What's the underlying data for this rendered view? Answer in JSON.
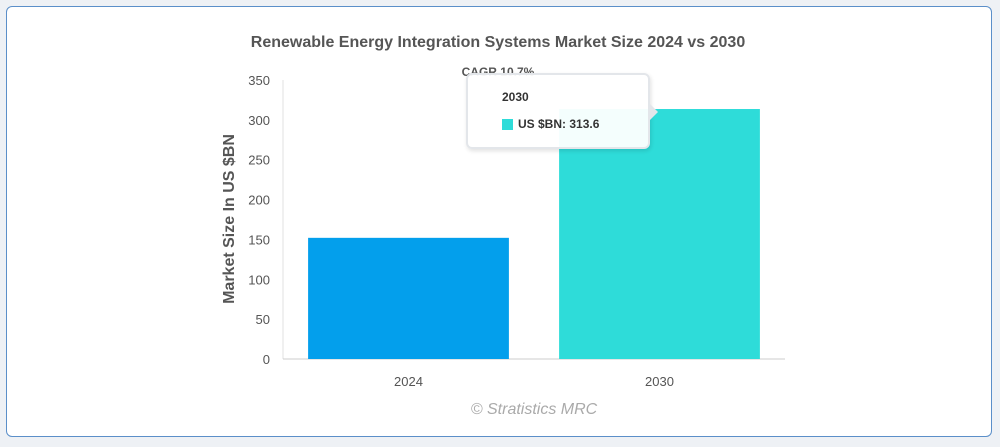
{
  "chart_data": {
    "type": "bar",
    "title": "Renewable Energy Integration Systems Market Size 2024 vs 2030",
    "subtitle": "CAGR 10.7%",
    "categories": [
      "2024",
      "2030"
    ],
    "values": [
      152,
      313.6
    ],
    "colors": [
      "#039fec",
      "#2edcd9"
    ],
    "ylabel": "Market Size In US $BN",
    "ylim": [
      0,
      350
    ],
    "yticks": [
      "0",
      "50",
      "100",
      "150",
      "200",
      "250",
      "300",
      "350"
    ],
    "legend": "none",
    "grid": false
  },
  "tooltip": {
    "title": "2030",
    "series_label": "US $BN",
    "value_text": "313.6",
    "color": "#2edcd9"
  },
  "credit": "© Stratistics MRC"
}
